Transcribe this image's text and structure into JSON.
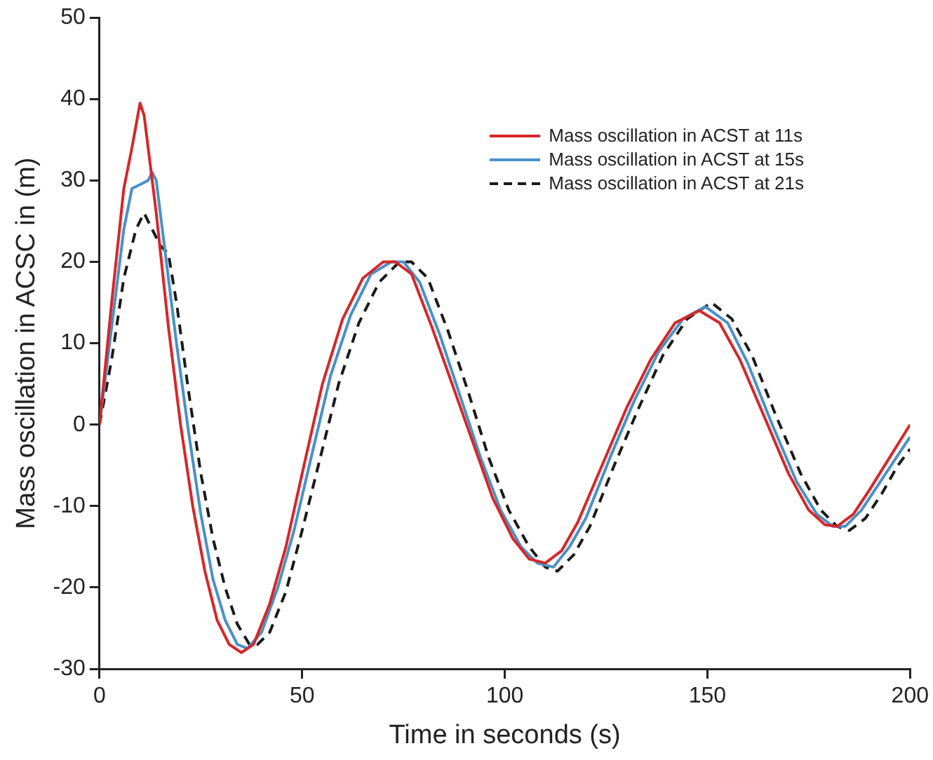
{
  "chart_data": {
    "type": "line",
    "xlabel": "Time in seconds (s)",
    "ylabel": "Mass oscillation in ACSC in (m)",
    "xlim": [
      0,
      200
    ],
    "xticks": [
      0,
      50,
      100,
      150,
      200
    ],
    "ylim": [
      -30,
      50
    ],
    "yticks": [
      -30,
      -20,
      -10,
      0,
      10,
      20,
      30,
      40,
      50
    ],
    "grid": false,
    "legend": "top right",
    "marker": "none",
    "series": [
      {
        "name": "Mass oscillation in ACST at 11s",
        "color": "#d62728",
        "line_style": "solid",
        "x": [
          0,
          3,
          6,
          8,
          10,
          11,
          14,
          17,
          20,
          23,
          26,
          29,
          32,
          35,
          38,
          42,
          46,
          50,
          55,
          60,
          65,
          70,
          73,
          77,
          82,
          87,
          92,
          97,
          102,
          106,
          110,
          114,
          118,
          124,
          130,
          136,
          142,
          148,
          153,
          158,
          164,
          170,
          175,
          179,
          182,
          186,
          190,
          195,
          200
        ],
        "values": [
          0,
          15,
          29,
          34,
          39.5,
          38,
          26,
          12,
          0,
          -10,
          -18,
          -24,
          -27,
          -28,
          -27,
          -22,
          -15,
          -6,
          5,
          13,
          18,
          20,
          20,
          18.5,
          12,
          5,
          -2,
          -9,
          -14,
          -16.5,
          -17,
          -15.5,
          -12,
          -5,
          2,
          8,
          12.5,
          14,
          12.5,
          8,
          1,
          -6,
          -10.5,
          -12.3,
          -12.5,
          -11,
          -8,
          -4,
          0
        ]
      },
      {
        "name": "Mass oscillation in ACST at 15s",
        "color": "#4a90c8",
        "line_style": "solid",
        "x": [
          0,
          3,
          6,
          8,
          10,
          12,
          13,
          14,
          16,
          19,
          22,
          25,
          28,
          31,
          34,
          36.5,
          40,
          44,
          48,
          52,
          57,
          62,
          67,
          72,
          75,
          79,
          84,
          89,
          94,
          99,
          104,
          108,
          112,
          116,
          120,
          126,
          132,
          138,
          144,
          149.5,
          155,
          160,
          166,
          172,
          177,
          181,
          184,
          188,
          192,
          196,
          200
        ],
        "values": [
          0,
          12,
          24,
          29,
          29.5,
          30,
          31,
          30,
          22,
          10,
          -1,
          -11,
          -19,
          -24,
          -27,
          -27.5,
          -25.5,
          -20,
          -13,
          -4.5,
          6,
          13.5,
          18.5,
          20,
          20,
          17.5,
          11,
          3.5,
          -4,
          -10.5,
          -15,
          -17,
          -17.5,
          -15,
          -11.5,
          -4,
          3,
          9,
          13,
          14.5,
          12.5,
          7.5,
          0,
          -7,
          -11,
          -12.5,
          -12.5,
          -10.5,
          -7.5,
          -4.5,
          -1.5
        ]
      },
      {
        "name": "Mass oscillation in ACST at 21s",
        "color": "#1a1a1a",
        "line_style": "dashed",
        "x": [
          0,
          3,
          6,
          9,
          11,
          13,
          15,
          17,
          19,
          22,
          25,
          28,
          31,
          34,
          37,
          39,
          42,
          46,
          50,
          54,
          59,
          64,
          69,
          74,
          77,
          81,
          86,
          91,
          96,
          101,
          106,
          110,
          113,
          117,
          121,
          127,
          133,
          139,
          145,
          151,
          156,
          161,
          167,
          173,
          178,
          182,
          185,
          189,
          193,
          197,
          200
        ],
        "values": [
          0,
          8,
          18,
          24,
          26,
          24,
          22,
          21,
          15,
          4,
          -6,
          -14,
          -20,
          -24.5,
          -27,
          -27,
          -25.5,
          -20.5,
          -13,
          -5,
          5,
          12.5,
          17.5,
          20,
          20,
          18,
          11.5,
          4,
          -4,
          -10.5,
          -15,
          -17.5,
          -18,
          -16,
          -12.5,
          -5,
          2,
          8.5,
          13,
          15,
          13,
          8.5,
          1,
          -6,
          -10.5,
          -12.5,
          -13,
          -11.5,
          -8.5,
          -5,
          -3
        ]
      }
    ]
  }
}
